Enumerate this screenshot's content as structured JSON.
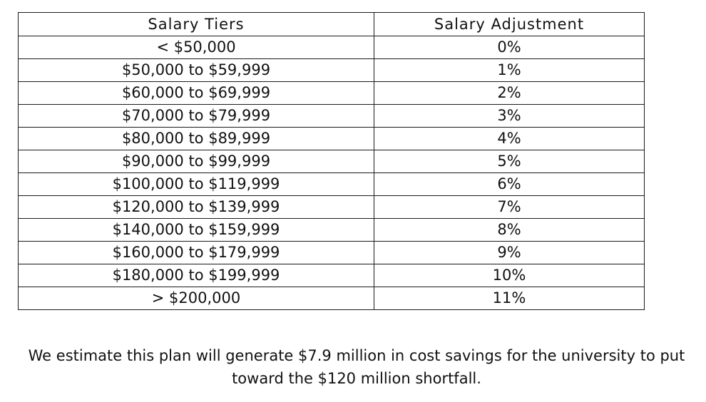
{
  "table": {
    "headers": {
      "tier": "Salary Tiers",
      "adjustment": "Salary Adjustment"
    },
    "rows": [
      {
        "tier": "< $50,000",
        "adjustment": "0%"
      },
      {
        "tier": "$50,000 to $59,999",
        "adjustment": "1%"
      },
      {
        "tier": "$60,000 to $69,999",
        "adjustment": "2%"
      },
      {
        "tier": "$70,000 to $79,999",
        "adjustment": "3%"
      },
      {
        "tier": "$80,000 to $89,999",
        "adjustment": "4%"
      },
      {
        "tier": "$90,000 to $99,999",
        "adjustment": "5%"
      },
      {
        "tier": "$100,000 to $119,999",
        "adjustment": "6%"
      },
      {
        "tier": "$120,000 to $139,999",
        "adjustment": "7%"
      },
      {
        "tier": "$140,000 to $159,999",
        "adjustment": "8%"
      },
      {
        "tier": "$160,000 to $179,999",
        "adjustment": "9%"
      },
      {
        "tier": "$180,000 to $199,999",
        "adjustment": "10%"
      },
      {
        "tier": "> $200,000",
        "adjustment": "11%"
      }
    ]
  },
  "note": {
    "text": "We estimate this plan will generate $7.9 million in cost savings for the university to put toward the $120 million shortfall."
  }
}
